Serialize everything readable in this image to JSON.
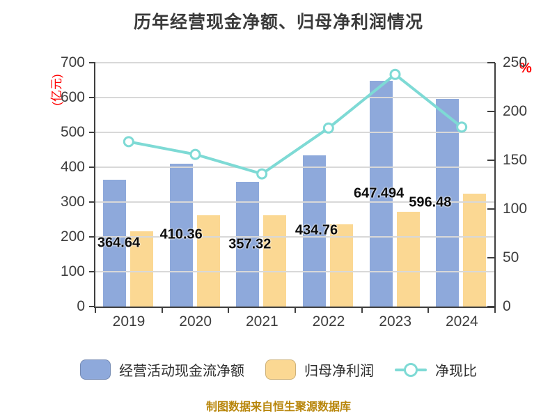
{
  "title": "历年经营现金净额、归母净利润情况",
  "source_note": "制图数据来自恒生聚源数据库",
  "chart_data": {
    "type": "combo-bar-line",
    "title": "历年经营现金净额、归母净利润情况",
    "categories": [
      "2019",
      "2020",
      "2021",
      "2022",
      "2023",
      "2024"
    ],
    "series": [
      {
        "name": "经营活动现金流净额",
        "type": "bar",
        "axis": "left",
        "color": "#8EA9DB",
        "values": [
          364.64,
          410.36,
          357.32,
          434.76,
          647.49,
          596.48
        ],
        "data_labels": [
          "364.64",
          "410.36",
          "357.32",
          "434.76",
          "647.494",
          "596.48"
        ]
      },
      {
        "name": "归母净利润",
        "type": "bar",
        "axis": "left",
        "color": "#FBD893",
        "values": [
          216,
          263,
          263,
          237,
          272,
          325
        ]
      },
      {
        "name": "净现比",
        "type": "line",
        "axis": "right",
        "color": "#7EDAD5",
        "marker": {
          "fill": "#FFFFFF",
          "stroke": "#7EDAD5"
        },
        "values": [
          169,
          156,
          136,
          183,
          238,
          184
        ]
      }
    ],
    "left_axis": {
      "title": "(亿元)",
      "title_color": "#FF0000",
      "min": 0,
      "max": 700,
      "step": 100
    },
    "right_axis": {
      "title": "%",
      "title_color": "#FF0000",
      "min": 0,
      "max": 250,
      "step": 50
    },
    "grid": "horizontal",
    "legend_position": "bottom"
  },
  "colors": {
    "title_text": "#3A3A3A",
    "tick_text": "#3D3D3D",
    "axis_line": "#3F3F3F",
    "grid_line": "#D8D8D8",
    "data_label_text": "#0D0D0D",
    "accent_red": "#FF0000",
    "source_note_text": "#B8860B",
    "background": "#FFFFFF"
  }
}
